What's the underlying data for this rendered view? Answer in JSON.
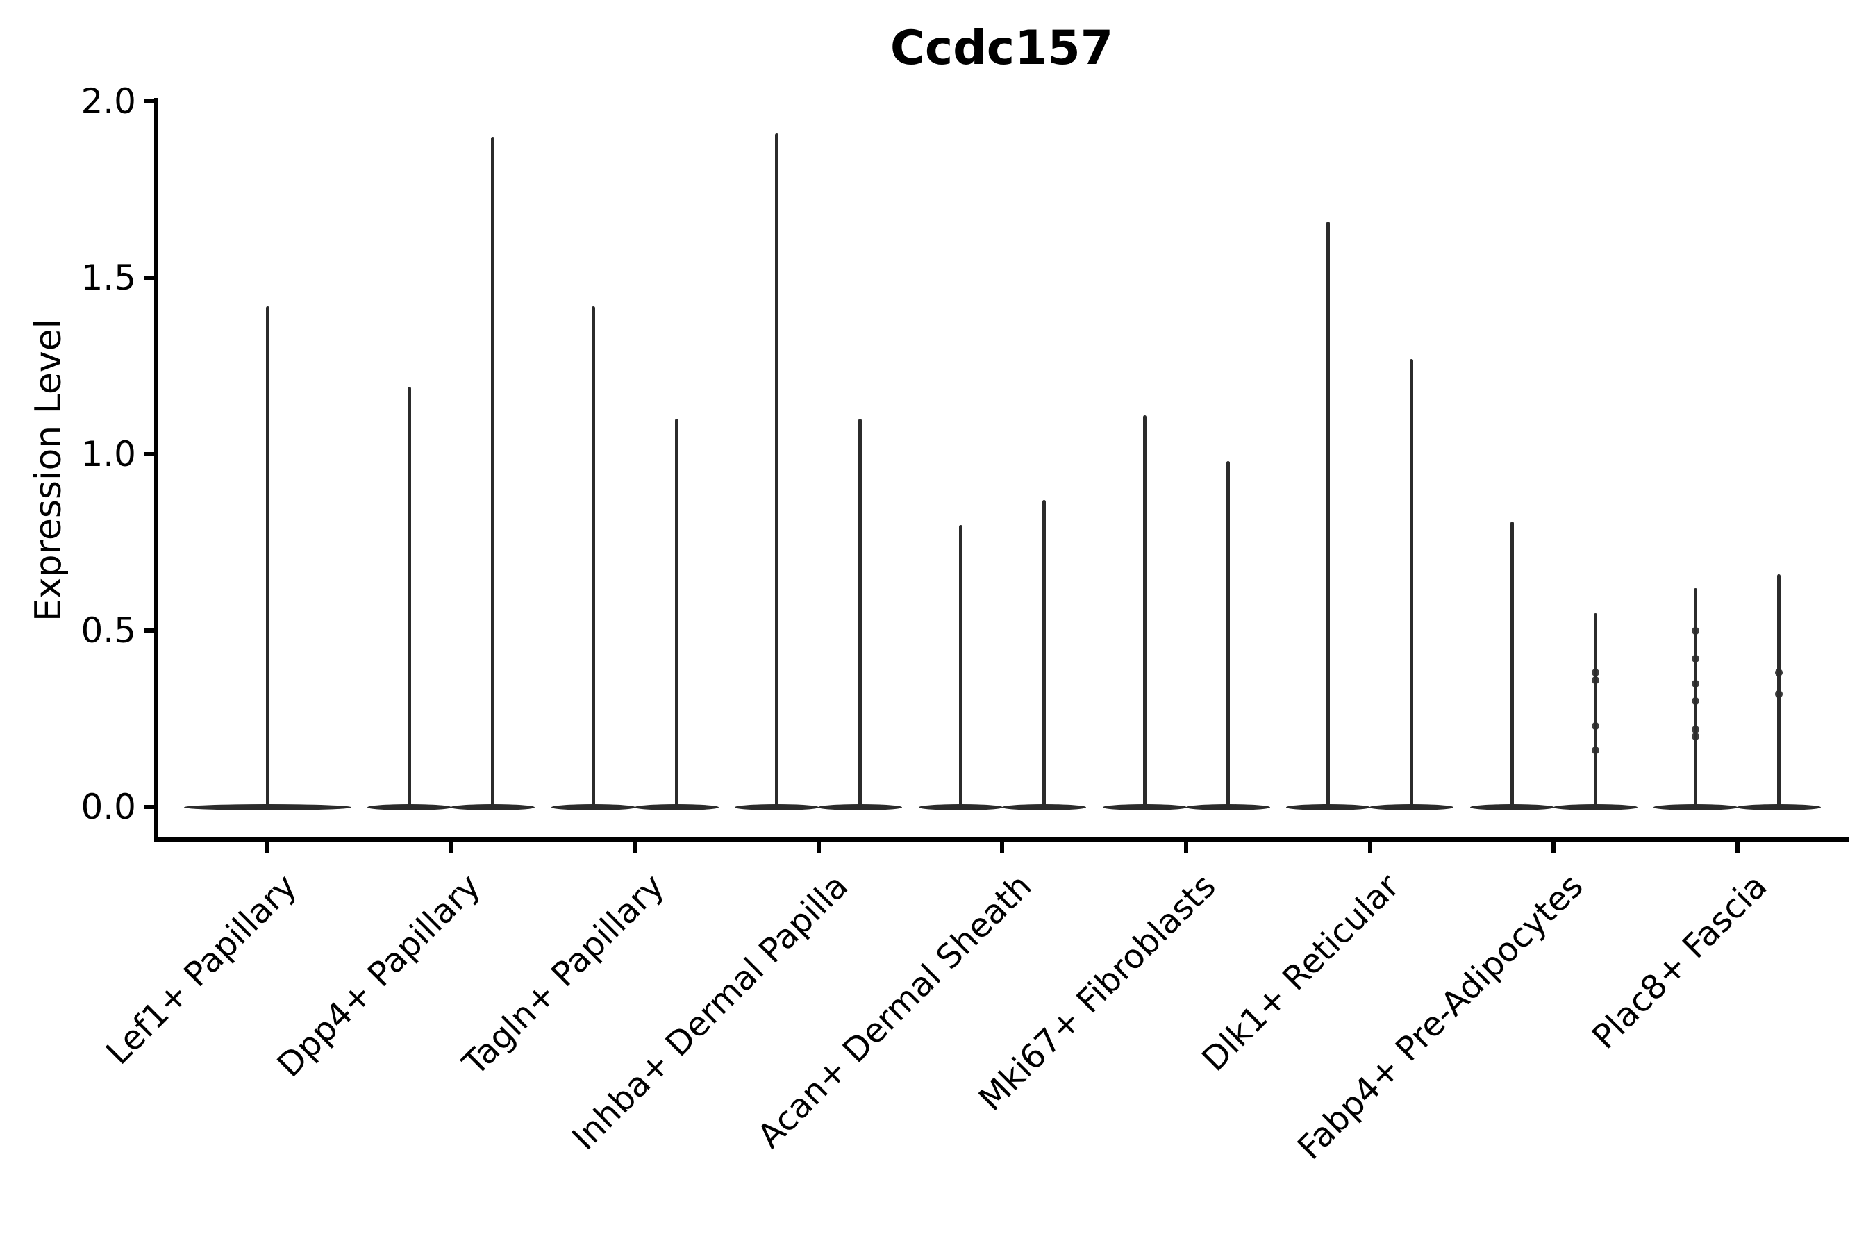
{
  "title": "Ccdc157",
  "colors": {
    "violin": "#2b2b2b",
    "axis": "#000000",
    "text": "#000000",
    "background": "#ffffff"
  },
  "chart_data": {
    "type": "violin",
    "title": "Ccdc157",
    "xlabel": "",
    "ylabel": "Expression Level",
    "ylim": [
      0.0,
      2.0
    ],
    "yticks": [
      "0.0",
      "0.5",
      "1.0",
      "1.5",
      "2.0"
    ],
    "grid": false,
    "legend": "none",
    "baseline_value": 0.0,
    "x_tick_label_rotation_deg": 45,
    "description": "Violin plot of Ccdc157 expression; expression is near zero in all clusters, each violin collapses to a flat disk at 0 with a thin density spike up to the maximum expressed cell. Categories 2-9 each contain two dodged violins; category 1 has a single full-width violin.",
    "categories": [
      {
        "label": "Lef1+ Papillary",
        "violins": [
          {
            "dodge": 0,
            "peak": 1.42,
            "dots": []
          }
        ]
      },
      {
        "label": "Dpp4+ Papillary",
        "violins": [
          {
            "dodge": -1,
            "peak": 1.19,
            "dots": []
          },
          {
            "dodge": 1,
            "peak": 1.9,
            "dots": []
          }
        ]
      },
      {
        "label": "Tagln+ Papillary",
        "violins": [
          {
            "dodge": -1,
            "peak": 1.42,
            "dots": []
          },
          {
            "dodge": 1,
            "peak": 1.1,
            "dots": []
          }
        ]
      },
      {
        "label": "Inhba+ Dermal Papilla",
        "violins": [
          {
            "dodge": -1,
            "peak": 1.91,
            "dots": []
          },
          {
            "dodge": 1,
            "peak": 1.1,
            "dots": []
          }
        ]
      },
      {
        "label": "Acan+ Dermal Sheath",
        "violins": [
          {
            "dodge": -1,
            "peak": 0.8,
            "dots": []
          },
          {
            "dodge": 1,
            "peak": 0.87,
            "dots": []
          }
        ]
      },
      {
        "label": "Mki67+ Fibroblasts",
        "violins": [
          {
            "dodge": -1,
            "peak": 1.11,
            "dots": []
          },
          {
            "dodge": 1,
            "peak": 0.98,
            "dots": []
          }
        ]
      },
      {
        "label": "Dlk1+ Reticular",
        "violins": [
          {
            "dodge": -1,
            "peak": 1.66,
            "dots": []
          },
          {
            "dodge": 1,
            "peak": 1.27,
            "dots": []
          }
        ]
      },
      {
        "label": "Fabp4+ Pre-Adipocytes",
        "violins": [
          {
            "dodge": -1,
            "peak": 0.81,
            "dots": []
          },
          {
            "dodge": 1,
            "peak": 0.55,
            "dots": [
              0.38,
              0.36,
              0.23,
              0.16
            ]
          }
        ]
      },
      {
        "label": "Plac8+ Fascia",
        "violins": [
          {
            "dodge": -1,
            "peak": 0.62,
            "dots": [
              0.5,
              0.42,
              0.35,
              0.3,
              0.22,
              0.2
            ]
          },
          {
            "dodge": 1,
            "peak": 0.66,
            "dots": [
              0.38,
              0.32
            ]
          }
        ]
      }
    ]
  }
}
